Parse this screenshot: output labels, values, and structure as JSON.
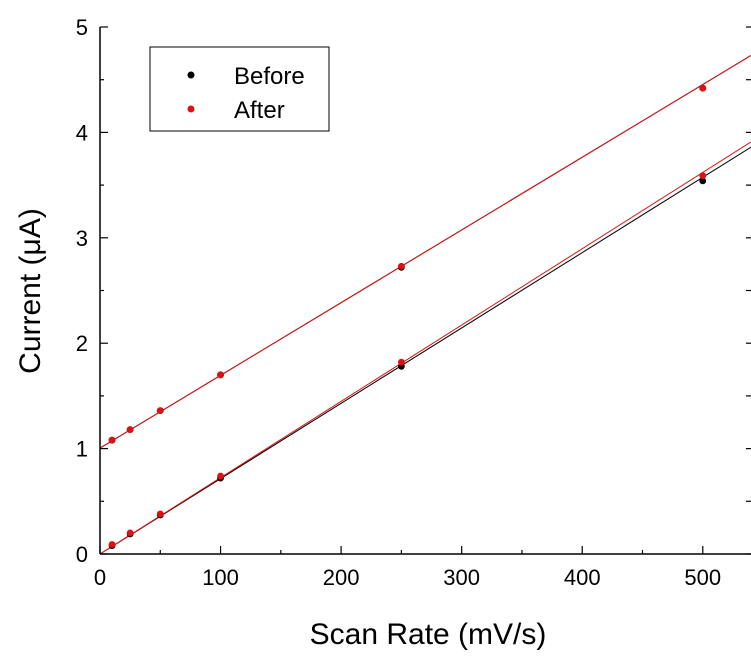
{
  "chart_data": {
    "type": "scatter",
    "xlabel": "Scan Rate (mV/s)",
    "ylabel": "Current (μA)",
    "xlim": [
      0,
      540
    ],
    "ylim": [
      0,
      5
    ],
    "x_ticks": [
      "0",
      "100",
      "200",
      "300",
      "400",
      "500"
    ],
    "y_ticks": [
      "0",
      "1",
      "2",
      "3",
      "4",
      "5"
    ],
    "legend": {
      "position": "top-left",
      "entries": [
        "Before",
        "After"
      ]
    },
    "grid": false,
    "series": [
      {
        "name": "Before",
        "color": "#000000",
        "groups": [
          {
            "x": [
              10,
              25,
              50,
              100,
              250,
              500
            ],
            "y": [
              1.08,
              1.18,
              1.36,
              1.7,
              2.72,
              4.42
            ]
          },
          {
            "x": [
              10,
              25,
              50,
              100,
              250,
              500
            ],
            "y": [
              0.08,
              0.19,
              0.37,
              0.72,
              1.78,
              3.54
            ]
          }
        ]
      },
      {
        "name": "After",
        "color": "#dd1111",
        "groups": [
          {
            "x": [
              10,
              25,
              50,
              100,
              250,
              500
            ],
            "y": [
              1.08,
              1.18,
              1.36,
              1.7,
              2.73,
              4.42
            ]
          },
          {
            "x": [
              10,
              25,
              50,
              100,
              250,
              500
            ],
            "y": [
              0.09,
              0.2,
              0.38,
              0.74,
              1.82,
              3.59
            ]
          }
        ]
      }
    ],
    "fit_lines": [
      {
        "color": "#000000",
        "x": [
          0,
          540
        ],
        "y": [
          1.005,
          4.73
        ]
      },
      {
        "color": "#000000",
        "x": [
          0,
          540
        ],
        "y": [
          0.0,
          3.86
        ]
      },
      {
        "color": "#dd1111",
        "x": [
          0,
          540
        ],
        "y": [
          1.005,
          4.73
        ]
      },
      {
        "color": "#dd1111",
        "x": [
          0,
          540
        ],
        "y": [
          0.0,
          3.91
        ]
      }
    ]
  }
}
